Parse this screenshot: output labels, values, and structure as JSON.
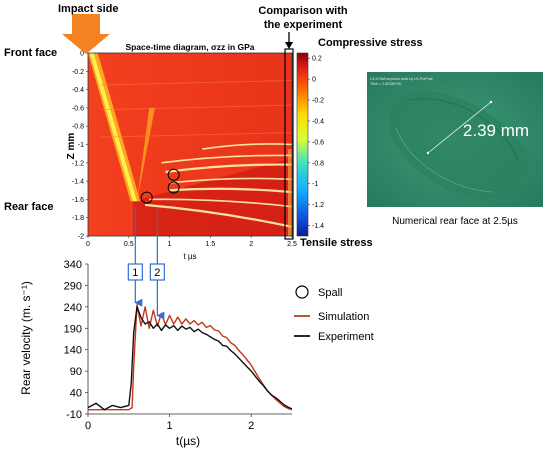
{
  "annotations": {
    "impact_side": "Impact side",
    "front_face": "Front face",
    "rear_face": "Rear face",
    "comparison_line1": "Comparison with",
    "comparison_line2": "the experiment",
    "compressive": "Compressive stress",
    "tensile": "Tensile stress",
    "marker_1": "1",
    "marker_2": "2"
  },
  "colors": {
    "field_red": "#f2361b",
    "field_dark_red": "#c4120e",
    "field_orange": "#ffa520",
    "field_yellow": "#fff050",
    "field_pale": "#fff4b0",
    "simulation": "#c0391b",
    "experiment": "#111111",
    "arrow_blue": "#2f6fd6",
    "impact_arrow": "#f58220",
    "fe_green": "#2f8a68"
  },
  "chart_data": [
    {
      "type": "heatmap",
      "title": "Space-time diagram, σzz in GPa",
      "xlabel": "t µs",
      "ylabel": "Z mm",
      "xlim": [
        0,
        2.5
      ],
      "ylim": [
        -2,
        0
      ],
      "x_ticks": [
        "0",
        "0.5",
        "1",
        "1.5",
        "2",
        "2.5"
      ],
      "y_ticks": [
        "0",
        "-0.2",
        "-0.4",
        "-0.6",
        "-0.8",
        "-1",
        "-1.2",
        "-1.4",
        "-1.6",
        "-1.8",
        "-2"
      ],
      "colorbar_ticks": [
        "0.2",
        "0",
        "-0.2",
        "-0.4",
        "-0.6",
        "-0.8",
        "-1",
        "-1.2",
        "-1.4"
      ],
      "colorbar_range": [
        -1.5,
        0.25
      ],
      "spall_circles": [
        {
          "t": 1.05,
          "z": -1.33
        },
        {
          "t": 1.05,
          "z": -1.47
        },
        {
          "t": 0.72,
          "z": -1.58
        }
      ],
      "comparison_window_t": 2.5
    },
    {
      "type": "line",
      "xlabel": "t(µs)",
      "ylabel": "Rear velocity (m. s⁻¹)",
      "xlim": [
        0,
        2.5
      ],
      "ylim": [
        -10,
        340
      ],
      "x_ticks": [
        "0",
        "1",
        "2"
      ],
      "y_ticks": [
        "-10",
        "40",
        "90",
        "140",
        "190",
        "240",
        "290",
        "340"
      ],
      "legend": {
        "position": "right",
        "spall": "Spall",
        "simulation": "Simulation",
        "experiment": "Experiment"
      },
      "markers": [
        {
          "label": "1",
          "t": 0.58
        },
        {
          "label": "2",
          "t": 0.85
        }
      ],
      "series": [
        {
          "name": "Simulation",
          "x": [
            0,
            0.3,
            0.5,
            0.54,
            0.56,
            0.6,
            0.65,
            0.7,
            0.75,
            0.8,
            0.85,
            0.9,
            0.95,
            1.0,
            1.05,
            1.1,
            1.15,
            1.2,
            1.25,
            1.3,
            1.35,
            1.4,
            1.45,
            1.5,
            1.55,
            1.6,
            1.65,
            1.7,
            1.75,
            1.8,
            1.85,
            1.9,
            1.95,
            2.0,
            2.05,
            2.1,
            2.15,
            2.2,
            2.25,
            2.3,
            2.35,
            2.4,
            2.45,
            2.5
          ],
          "y": [
            0,
            0,
            0,
            5,
            100,
            245,
            195,
            240,
            190,
            232,
            195,
            225,
            198,
            220,
            200,
            216,
            200,
            212,
            200,
            208,
            198,
            204,
            192,
            196,
            186,
            184,
            172,
            168,
            156,
            150,
            138,
            128,
            116,
            104,
            88,
            72,
            58,
            44,
            34,
            24,
            16,
            8,
            3,
            0
          ]
        },
        {
          "name": "Experiment",
          "x": [
            0,
            0.1,
            0.2,
            0.3,
            0.4,
            0.5,
            0.53,
            0.56,
            0.6,
            0.65,
            0.7,
            0.75,
            0.8,
            0.85,
            0.9,
            0.95,
            1.0,
            1.05,
            1.1,
            1.15,
            1.2,
            1.25,
            1.3,
            1.35,
            1.4,
            1.45,
            1.5,
            1.55,
            1.6,
            1.65,
            1.7,
            1.75,
            1.8,
            1.85,
            1.9,
            1.95,
            2.0,
            2.05,
            2.1,
            2.15,
            2.2,
            2.25,
            2.3,
            2.35,
            2.4,
            2.45,
            2.5
          ],
          "y": [
            5,
            15,
            0,
            10,
            5,
            10,
            60,
            180,
            240,
            215,
            200,
            205,
            190,
            200,
            185,
            198,
            190,
            196,
            185,
            195,
            188,
            192,
            182,
            188,
            180,
            176,
            170,
            164,
            160,
            150,
            148,
            138,
            130,
            120,
            110,
            100,
            90,
            78,
            66,
            56,
            44,
            34,
            28,
            20,
            12,
            6,
            2
          ]
        }
      ]
    }
  ],
  "fe_panel": {
    "header_line1": "LS-DYNA keyword deck by LS-PrePost",
    "header_line2": "Time = 2.5015E+00",
    "measurement": "2.39 mm",
    "caption": "Numerical rear face at 2.5µs"
  }
}
